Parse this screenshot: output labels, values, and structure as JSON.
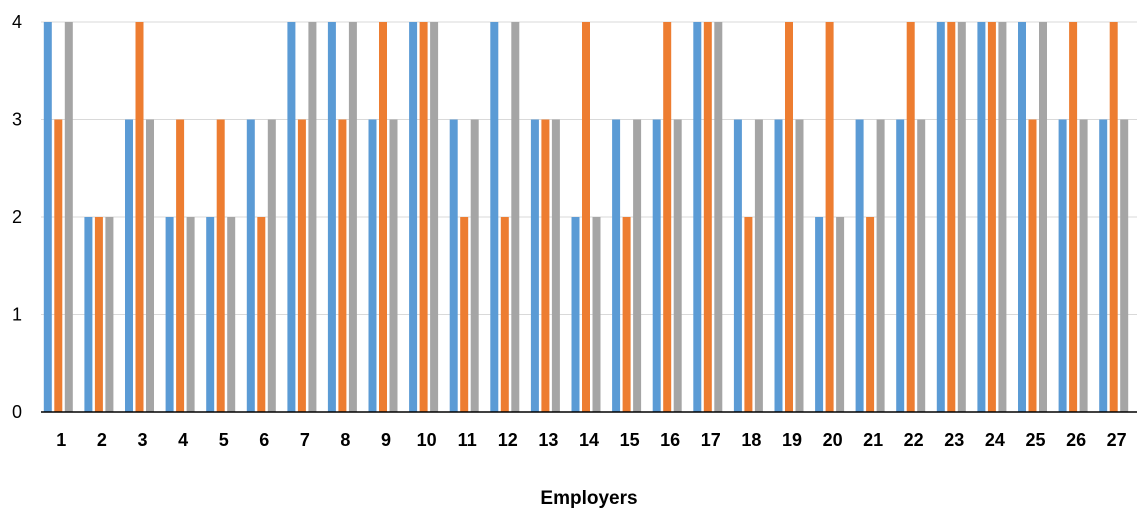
{
  "chart_data": {
    "type": "bar",
    "title": "",
    "xlabel": "Employers",
    "ylabel": "",
    "ylim": [
      0,
      4
    ],
    "yticks": [
      "0",
      "1",
      "2",
      "3",
      "4"
    ],
    "grid": true,
    "categories": [
      "1",
      "2",
      "3",
      "4",
      "5",
      "6",
      "7",
      "8",
      "9",
      "10",
      "11",
      "12",
      "13",
      "14",
      "15",
      "16",
      "17",
      "18",
      "19",
      "20",
      "21",
      "22",
      "23",
      "24",
      "25",
      "26",
      "27"
    ],
    "series": [
      {
        "color": "#5b9bd5",
        "values": [
          4,
          2,
          3,
          2,
          2,
          3,
          4,
          4,
          3,
          4,
          3,
          4,
          3,
          2,
          3,
          3,
          4,
          3,
          3,
          2,
          3,
          3,
          4,
          4,
          4,
          3,
          3
        ]
      },
      {
        "color": "#ed7d31",
        "values": [
          3,
          2,
          4,
          3,
          3,
          2,
          3,
          3,
          4,
          4,
          2,
          2,
          3,
          4,
          2,
          4,
          4,
          2,
          4,
          4,
          2,
          4,
          4,
          4,
          3,
          4,
          4
        ]
      },
      {
        "color": "#a5a5a5",
        "values": [
          4,
          2,
          3,
          2,
          2,
          3,
          4,
          4,
          3,
          4,
          3,
          4,
          3,
          2,
          3,
          3,
          4,
          3,
          3,
          2,
          3,
          3,
          4,
          4,
          4,
          3,
          3
        ]
      }
    ]
  }
}
